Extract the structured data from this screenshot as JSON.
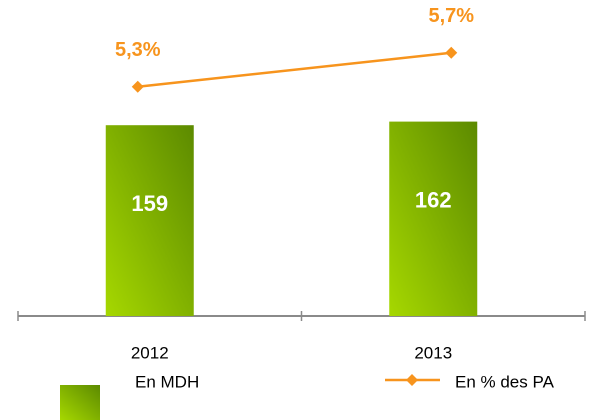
{
  "chart_data": {
    "type": "bar",
    "categories": [
      "2012",
      "2013"
    ],
    "ylim": [
      0,
      230
    ],
    "y2lim": [
      2.6,
      5.85
    ],
    "series": [
      {
        "name": "En MDH",
        "type": "bar",
        "color": "#8fc400",
        "values": [
          159,
          162
        ]
      },
      {
        "name": "En % des PA",
        "type": "line",
        "color": "#f7941d",
        "axis": "y2",
        "values": [
          5.3,
          5.7
        ],
        "value_labels": [
          "5,3%",
          "5,7%"
        ]
      }
    ]
  }
}
